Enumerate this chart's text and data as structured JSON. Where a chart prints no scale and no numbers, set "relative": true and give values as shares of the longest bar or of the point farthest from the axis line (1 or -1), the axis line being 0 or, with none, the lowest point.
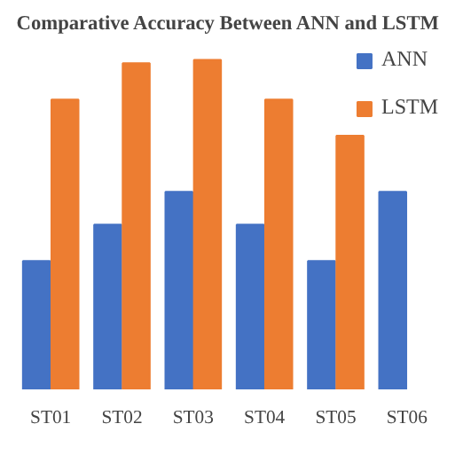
{
  "chart_data": {
    "type": "bar",
    "title": "Comparative Accuracy Between ANN and LSTM",
    "relative": true,
    "categories": [
      "ST01",
      "ST02",
      "ST03",
      "ST04",
      "ST05",
      "ST06"
    ],
    "series": [
      {
        "name": "ANN",
        "color": "#4472c4",
        "values": [
          0.39,
          0.5,
          0.6,
          0.5,
          0.39,
          0.6
        ]
      },
      {
        "name": "LSTM",
        "color": "#ed7d31",
        "values": [
          0.88,
          0.99,
          1.0,
          0.88,
          0.77,
          null
        ]
      }
    ],
    "legend": "top right"
  }
}
